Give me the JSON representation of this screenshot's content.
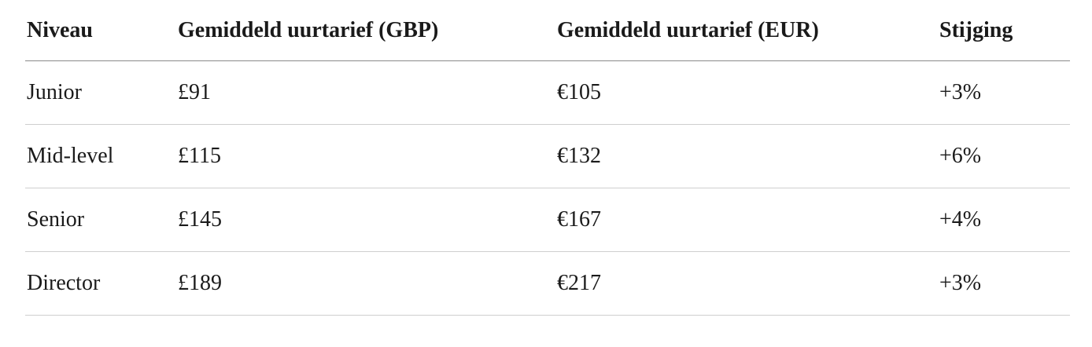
{
  "table": {
    "header": [
      "Niveau",
      "Gemiddeld uurtarief (GBP)",
      "Gemiddeld uurtarief (EUR)",
      "Stijging"
    ],
    "rows": [
      [
        "Junior",
        "£91",
        "€105",
        "+3%"
      ],
      [
        "Mid-level",
        "£115",
        "€132",
        "+6%"
      ],
      [
        "Senior",
        "£145",
        "€167",
        "+4%"
      ],
      [
        "Director",
        "£189",
        "€217",
        "+3%"
      ]
    ]
  }
}
